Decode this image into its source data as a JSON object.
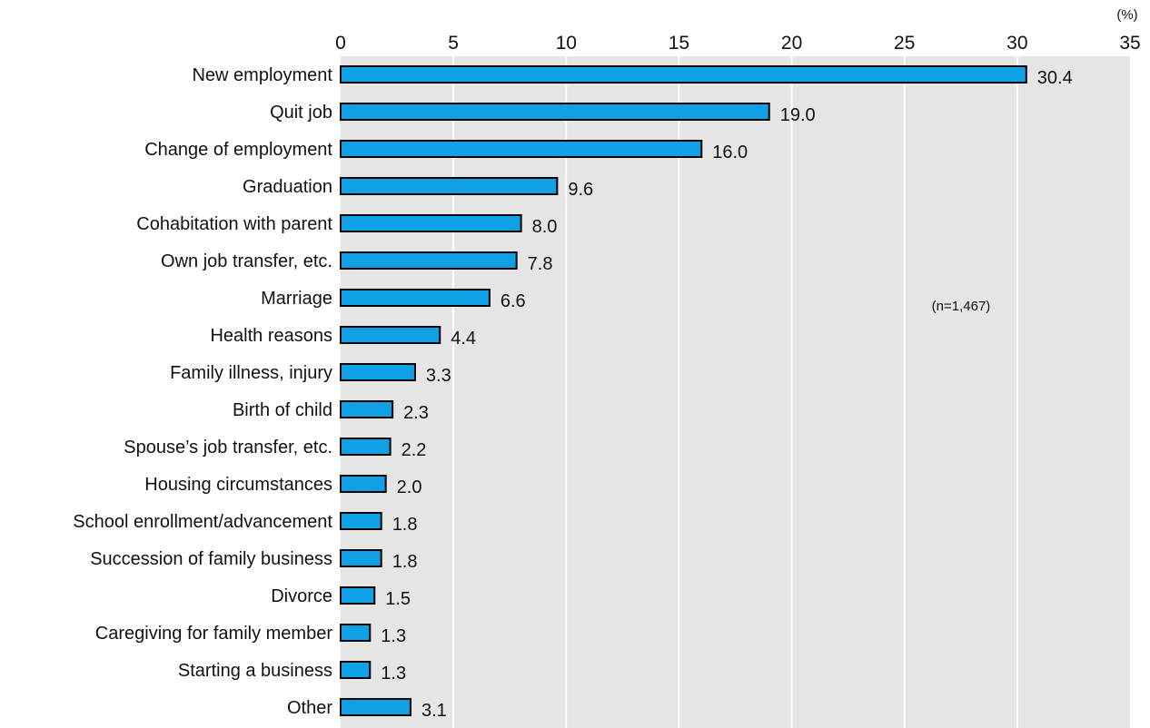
{
  "chart_data": {
    "type": "bar",
    "orientation": "horizontal",
    "unit": "(%)",
    "note": "(n=1,467)",
    "categories": [
      "New employment",
      "Quit job",
      "Change of employment",
      "Graduation",
      "Cohabitation with parent",
      "Own job transfer, etc.",
      "Marriage",
      "Health reasons",
      "Family illness, injury",
      "Birth of child",
      "Spouse’s job transfer, etc.",
      "Housing circumstances",
      "School enrollment/advancement",
      "Succession of family business",
      "Divorce",
      "Caregiving for family member",
      "Starting a business",
      "Other"
    ],
    "values": [
      30.4,
      19.0,
      16.0,
      9.6,
      8.0,
      7.8,
      6.6,
      4.4,
      3.3,
      2.3,
      2.2,
      2.0,
      1.8,
      1.8,
      1.5,
      1.3,
      1.3,
      3.1
    ],
    "value_labels": [
      "30.4",
      "19.0",
      "16.0",
      "9.6",
      "8.0",
      "7.8",
      "6.6",
      "4.4",
      "3.3",
      "2.3",
      "2.2",
      "2.0",
      "1.8",
      "1.8",
      "1.5",
      "1.3",
      "1.3",
      "3.1"
    ],
    "x_ticks": [
      "0",
      "5",
      "10",
      "15",
      "20",
      "25",
      "30",
      "35"
    ],
    "xlim": [
      0,
      35
    ],
    "axis_position": "top",
    "grid": true,
    "colors": {
      "bar_fill": "#0FA0E6",
      "bar_stroke": "#000000",
      "plot_background": "#E5E5E5",
      "grid_line": "#FFFFFF"
    }
  }
}
